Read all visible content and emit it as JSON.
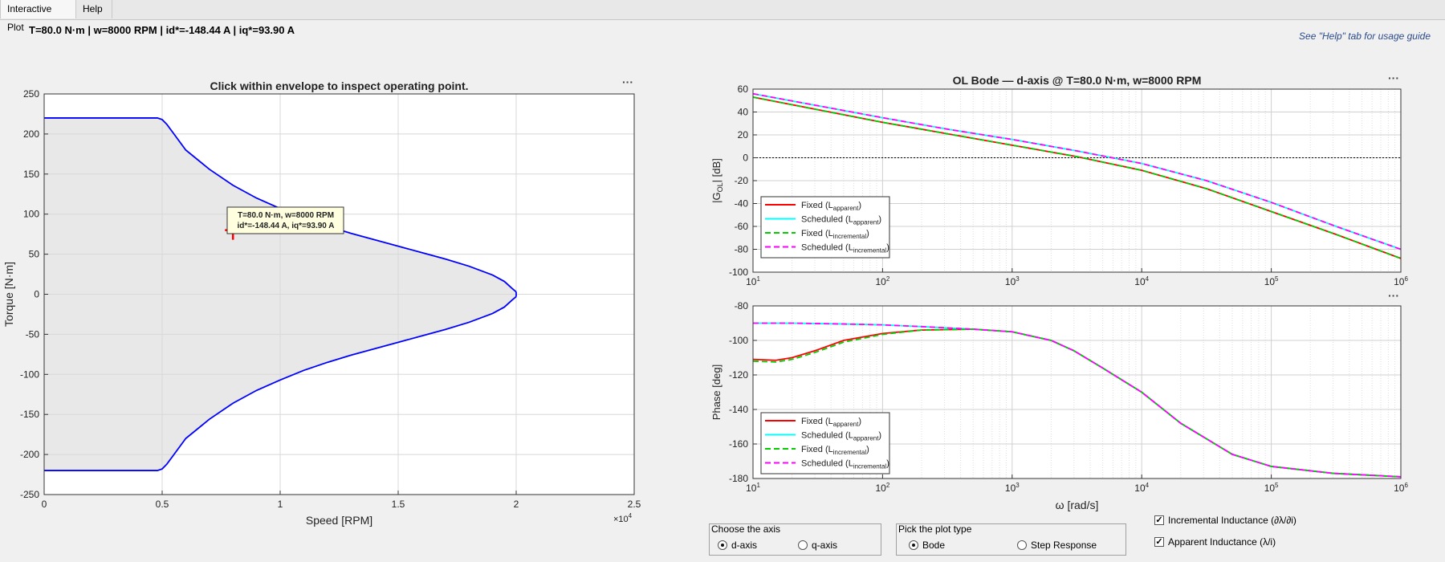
{
  "tabs": [
    "Interactive Plot",
    "Help"
  ],
  "status_text": "T=80.0 N·m  |  w=8000 RPM  |  id*=-148.44 A  |  iq*=93.90 A",
  "hint_text": "See \"Help\" tab for usage guide",
  "chart_data": [
    {
      "type": "area",
      "title": "Click within envelope to inspect operating point.",
      "xlabel": "Speed [RPM]",
      "ylabel": "Torque [N·m]",
      "x_multiplier": "×10^4",
      "xlim": [
        0,
        25000
      ],
      "ylim": [
        -250,
        250
      ],
      "xticks": [
        0,
        5000,
        10000,
        15000,
        20000,
        25000
      ],
      "xtick_labels": [
        "0",
        "0.5",
        "1",
        "1.5",
        "2",
        "2.5"
      ],
      "yticks": [
        -250,
        -200,
        -150,
        -100,
        -50,
        0,
        50,
        100,
        150,
        200,
        250
      ],
      "grid": true,
      "envelope_upper": {
        "x": [
          0,
          4800,
          5000,
          5200,
          5500,
          6000,
          7000,
          8000,
          9000,
          10000,
          11000,
          12000,
          13000,
          14000,
          15000,
          16000,
          17000,
          18000,
          19000,
          19500,
          19800,
          20000
        ],
        "y": [
          220,
          220,
          218,
          212,
          200,
          180,
          156,
          136,
          120,
          107,
          95,
          85,
          76,
          68,
          60,
          52,
          44,
          35,
          24,
          16,
          8,
          3
        ]
      },
      "envelope_lower": {
        "x": [
          0,
          4800,
          5000,
          5200,
          5500,
          6000,
          7000,
          8000,
          9000,
          10000,
          11000,
          12000,
          13000,
          14000,
          15000,
          16000,
          17000,
          18000,
          19000,
          19500,
          19800,
          20000
        ],
        "y": [
          -220,
          -220,
          -218,
          -212,
          -200,
          -180,
          -156,
          -136,
          -120,
          -107,
          -95,
          -85,
          -76,
          -68,
          -60,
          -52,
          -44,
          -35,
          -24,
          -16,
          -8,
          -3
        ]
      },
      "envelope_color": "#0000ff",
      "fill_color": "#e8e8e8",
      "operating_point": {
        "x": 8000,
        "y": 80
      },
      "datatip": [
        "T=80.0 N·m, w=8000 RPM",
        "id*=-148.44 A, iq*=93.90 A"
      ]
    },
    {
      "type": "line",
      "title": "OL Bode — d-axis @ T=80.0 N·m, w=8000 RPM",
      "xlabel": "",
      "ylabel": "|G_OL| [dB]",
      "xscale": "log",
      "xlim": [
        10,
        1000000
      ],
      "ylim": [
        -100,
        60
      ],
      "yticks": [
        -100,
        -80,
        -60,
        -40,
        -20,
        0,
        20,
        40,
        60
      ],
      "grid": true,
      "legend_location": "bottom-left",
      "x": [
        10,
        31.6,
        100,
        316,
        1000,
        3162,
        10000,
        31623,
        100000,
        316228,
        1000000
      ],
      "series": [
        {
          "name": "Fixed (L_apparent)",
          "color": "#ff0000",
          "dash": "solid",
          "values": [
            53,
            42,
            31,
            21,
            11,
            1,
            -11,
            -27,
            -47,
            -67,
            -88
          ]
        },
        {
          "name": "Scheduled (L_apparent)",
          "color": "#00ffff",
          "dash": "solid",
          "values": [
            56,
            45.5,
            35,
            25,
            16,
            6,
            -5,
            -20,
            -39,
            -60,
            -80
          ]
        },
        {
          "name": "Fixed (L_incremental)",
          "color": "#00cc00",
          "dash": "dashed",
          "values": [
            53,
            42,
            31,
            21,
            11,
            1,
            -11,
            -27,
            -47,
            -67,
            -88
          ]
        },
        {
          "name": "Scheduled (L_incremental)",
          "color": "#ff00ff",
          "dash": "dashed",
          "values": [
            56,
            45.5,
            35,
            25,
            16,
            6,
            -5,
            -20,
            -39,
            -60,
            -80
          ]
        }
      ]
    },
    {
      "type": "line",
      "title": "",
      "xlabel": "ω [rad/s]",
      "ylabel": "Phase [deg]",
      "xscale": "log",
      "xlim": [
        10,
        1000000
      ],
      "ylim": [
        -180,
        -80
      ],
      "yticks": [
        -180,
        -160,
        -140,
        -120,
        -100,
        -80
      ],
      "grid": true,
      "legend_location": "bottom-left",
      "x": [
        10,
        15,
        20,
        30,
        50,
        100,
        200,
        500,
        1000,
        2000,
        3000,
        5000,
        10000,
        20000,
        50000,
        100000,
        300000,
        1000000
      ],
      "series": [
        {
          "name": "Fixed (L_apparent)",
          "color": "#ff0000",
          "dash": "solid",
          "values": [
            -111,
            -111.5,
            -110,
            -106,
            -100,
            -96,
            -94,
            -93.5,
            -95,
            -100,
            -106,
            -116,
            -130,
            -148,
            -166,
            -173,
            -177,
            -179
          ]
        },
        {
          "name": "Scheduled (L_apparent)",
          "color": "#00ffff",
          "dash": "solid",
          "values": [
            -90,
            -90,
            -90,
            -90.2,
            -90.5,
            -91,
            -92,
            -93.5,
            -95,
            -100,
            -106,
            -116,
            -130,
            -148,
            -166,
            -173,
            -177,
            -179
          ]
        },
        {
          "name": "Fixed (L_incremental)",
          "color": "#00cc00",
          "dash": "dashed",
          "values": [
            -112,
            -112.5,
            -111,
            -107,
            -101,
            -96.5,
            -94,
            -93.5,
            -95,
            -100,
            -106,
            -116,
            -130,
            -148,
            -166,
            -173,
            -177,
            -179
          ]
        },
        {
          "name": "Scheduled (L_incremental)",
          "color": "#ff00ff",
          "dash": "dashed",
          "values": [
            -90,
            -90,
            -90,
            -90.2,
            -90.5,
            -91,
            -92,
            -93.5,
            -95,
            -100,
            -106,
            -116,
            -130,
            -148,
            -166,
            -173,
            -177,
            -179
          ]
        }
      ]
    }
  ],
  "legend_entries": [
    {
      "main": "Fixed (L",
      "sub": "apparent",
      "close": ")"
    },
    {
      "main": "Scheduled (L",
      "sub": "apparent",
      "close": ")"
    },
    {
      "main": "Fixed (L",
      "sub": "incremental",
      "close": ")"
    },
    {
      "main": "Scheduled (L",
      "sub": "incremental",
      "close": ")"
    }
  ],
  "controls": {
    "axis_panel": {
      "title": "Choose the axis",
      "options": [
        "d-axis",
        "q-axis"
      ],
      "selected": "d-axis"
    },
    "plot_type_panel": {
      "title": "Pick the plot type",
      "options": [
        "Bode",
        "Step Response"
      ],
      "selected": "Bode"
    },
    "checkboxes": [
      {
        "label": "Incremental Inductance (∂λ/∂i)",
        "checked": true
      },
      {
        "label": "Apparent Inductance (λ/i)",
        "checked": true
      }
    ]
  },
  "menu_dots": "···"
}
